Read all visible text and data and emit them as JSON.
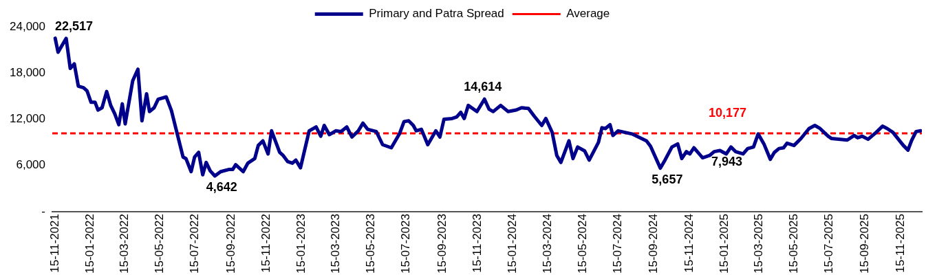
{
  "chart_data": {
    "type": "line",
    "legend": "top",
    "grid": false,
    "marker": "none",
    "x": [
      "2021-11-15",
      "2021-11-20",
      "2021-12-04",
      "2021-12-11",
      "2021-12-18",
      "2021-12-25",
      "2022-01-03",
      "2022-01-09",
      "2022-01-16",
      "2022-01-23",
      "2022-01-28",
      "2022-02-04",
      "2022-02-12",
      "2022-02-19",
      "2022-02-26",
      "2022-03-05",
      "2022-03-11",
      "2022-03-16",
      "2022-03-29",
      "2022-04-07",
      "2022-04-14",
      "2022-04-22",
      "2022-04-27",
      "2022-05-05",
      "2022-05-12",
      "2022-05-26",
      "2022-06-04",
      "2022-06-14",
      "2022-06-24",
      "2022-06-29",
      "2022-07-08",
      "2022-07-14",
      "2022-07-21",
      "2022-07-28",
      "2022-08-03",
      "2022-08-10",
      "2022-08-18",
      "2022-08-28",
      "2022-09-12",
      "2022-09-18",
      "2022-09-23",
      "2022-10-06",
      "2022-10-14",
      "2022-10-26",
      "2022-11-01",
      "2022-11-09",
      "2022-11-18",
      "2022-11-24",
      "2022-12-08",
      "2022-12-14",
      "2022-12-22",
      "2022-12-30",
      "2023-01-05",
      "2023-01-13",
      "2023-01-28",
      "2023-02-09",
      "2023-02-17",
      "2023-02-23",
      "2023-03-04",
      "2023-03-15",
      "2023-03-24",
      "2023-04-03",
      "2023-04-12",
      "2023-04-23",
      "2023-05-01",
      "2023-05-09",
      "2023-05-24",
      "2023-06-04",
      "2023-06-19",
      "2023-07-03",
      "2023-07-11",
      "2023-07-19",
      "2023-07-27",
      "2023-08-01",
      "2023-08-10",
      "2023-08-21",
      "2023-09-04",
      "2023-09-11",
      "2023-09-18",
      "2023-10-02",
      "2023-10-10",
      "2023-10-17",
      "2023-10-23",
      "2023-10-30",
      "2023-11-14",
      "2023-11-27",
      "2023-12-05",
      "2023-12-12",
      "2023-12-25",
      "2024-01-07",
      "2024-01-21",
      "2024-01-30",
      "2024-02-11",
      "2024-02-21",
      "2024-03-05",
      "2024-03-12",
      "2024-03-23",
      "2024-03-31",
      "2024-04-07",
      "2024-04-21",
      "2024-04-28",
      "2024-05-06",
      "2024-05-18",
      "2024-05-26",
      "2024-06-11",
      "2024-06-17",
      "2024-06-23",
      "2024-07-01",
      "2024-07-06",
      "2024-07-15",
      "2024-07-27",
      "2024-08-08",
      "2024-09-02",
      "2024-09-09",
      "2024-09-26",
      "2024-10-04",
      "2024-10-16",
      "2024-10-26",
      "2024-11-02",
      "2024-11-10",
      "2024-11-16",
      "2024-11-23",
      "2024-12-08",
      "2024-12-20",
      "2024-12-28",
      "2025-01-07",
      "2025-01-18",
      "2025-01-26",
      "2025-02-03",
      "2025-02-16",
      "2025-02-24",
      "2025-03-06",
      "2025-03-14",
      "2025-03-24",
      "2025-04-04",
      "2025-04-11",
      "2025-04-19",
      "2025-04-27",
      "2025-05-03",
      "2025-05-15",
      "2025-05-27",
      "2025-06-10",
      "2025-06-20",
      "2025-06-29",
      "2025-07-13",
      "2025-07-19",
      "2025-08-15",
      "2025-08-27",
      "2025-09-02",
      "2025-09-10",
      "2025-09-20",
      "2025-10-04",
      "2025-10-15",
      "2025-10-23",
      "2025-11-02",
      "2025-11-20",
      "2025-11-28",
      "2025-12-04",
      "2025-12-12",
      "2025-12-20"
    ],
    "series": [
      {
        "name": "Primary and Patra Spread",
        "color": "#00008b",
        "line_style": "solid",
        "values": [
          22517,
          20700,
          22500,
          18600,
          19200,
          16300,
          16100,
          15700,
          14200,
          14200,
          13200,
          13500,
          15600,
          13800,
          12700,
          11300,
          14000,
          11400,
          17000,
          18500,
          11800,
          15300,
          13000,
          13500,
          14600,
          14900,
          13100,
          10100,
          7100,
          6900,
          5200,
          7100,
          7700,
          4800,
          6400,
          5300,
          4642,
          5200,
          5500,
          5500,
          6100,
          5200,
          6300,
          6900,
          8600,
          9200,
          7500,
          10500,
          7700,
          7300,
          6500,
          6300,
          6700,
          5700,
          10500,
          11000,
          9800,
          11200,
          10000,
          10500,
          10400,
          11000,
          9700,
          10500,
          11500,
          10700,
          10400,
          8700,
          8300,
          10100,
          11700,
          11800,
          11200,
          10500,
          10700,
          8700,
          10500,
          9700,
          12000,
          12100,
          12300,
          12900,
          12100,
          13800,
          13000,
          14614,
          13300,
          13000,
          13800,
          13000,
          13200,
          13500,
          13400,
          12400,
          11200,
          12100,
          10300,
          7300,
          6400,
          9200,
          6900,
          8400,
          7900,
          6700,
          9000,
          10900,
          10800,
          11300,
          9900,
          10500,
          10300,
          10100,
          9200,
          8500,
          5657,
          6700,
          8400,
          8800,
          6900,
          7800,
          7500,
          8300,
          7000,
          7300,
          7800,
          7943,
          7500,
          8400,
          7800,
          7500,
          8200,
          8400,
          10100,
          8800,
          6800,
          7700,
          8200,
          8300,
          8900,
          8600,
          9500,
          10800,
          11200,
          10800,
          9800,
          9500,
          9300,
          9900,
          9600,
          9800,
          9400,
          10300,
          11100,
          10800,
          10300,
          8600,
          8000,
          9200,
          10400,
          10500
        ]
      }
    ],
    "ref_lines": [
      {
        "axis": "y",
        "value": 10177,
        "label": "Average",
        "color": "#ff0000",
        "line_style": "dashed"
      }
    ],
    "annotations": [
      {
        "text": "22,517",
        "x": "2021-11-15",
        "y": 22517
      },
      {
        "text": "4,642",
        "x": "2022-08-18",
        "y": 4642
      },
      {
        "text": "14,614",
        "x": "2023-11-27",
        "y": 14614
      },
      {
        "text": "5,657",
        "x": "2024-09-26",
        "y": 5657
      },
      {
        "text": "7,943",
        "x": "2025-01-07",
        "y": 7943
      },
      {
        "text": "10,177",
        "x": "2025-01-20",
        "y": 10177
      }
    ],
    "xlim": [
      "2021-11-10",
      "2025-12-22"
    ],
    "xticks": [
      {
        "value": "2021-11-15",
        "label": "15-11-2021"
      },
      {
        "value": "2022-01-15",
        "label": "15-01-2022"
      },
      {
        "value": "2022-03-15",
        "label": "15-03-2022"
      },
      {
        "value": "2022-05-15",
        "label": "15-05-2022"
      },
      {
        "value": "2022-07-15",
        "label": "15-07-2022"
      },
      {
        "value": "2022-09-15",
        "label": "15-09-2022"
      },
      {
        "value": "2022-11-15",
        "label": "15-11-2022"
      },
      {
        "value": "2023-01-15",
        "label": "15-01-2023"
      },
      {
        "value": "2023-03-15",
        "label": "15-03-2023"
      },
      {
        "value": "2023-05-15",
        "label": "15-05-2023"
      },
      {
        "value": "2023-07-15",
        "label": "15-07-2023"
      },
      {
        "value": "2023-09-15",
        "label": "15-09-2023"
      },
      {
        "value": "2023-11-15",
        "label": "15-11-2023"
      },
      {
        "value": "2024-01-15",
        "label": "15-01-2024"
      },
      {
        "value": "2024-03-15",
        "label": "15-03-2024"
      },
      {
        "value": "2024-05-15",
        "label": "15-05-2024"
      },
      {
        "value": "2024-07-15",
        "label": "15-07-2024"
      },
      {
        "value": "2024-09-15",
        "label": "15-09-2024"
      },
      {
        "value": "2024-11-15",
        "label": "15-11-2024"
      },
      {
        "value": "2025-01-15",
        "label": "15-01-2025"
      },
      {
        "value": "2025-03-15",
        "label": "15-03-2025"
      },
      {
        "value": "2025-05-15",
        "label": "15-05-2025"
      },
      {
        "value": "2025-07-15",
        "label": "15-07-2025"
      },
      {
        "value": "2025-09-15",
        "label": "15-09-2025"
      },
      {
        "value": "2025-11-15",
        "label": "15-11-2025"
      }
    ],
    "ylim": [
      0,
      24000
    ],
    "yticks": [
      {
        "value": 0,
        "label": "-"
      },
      {
        "value": 6000,
        "label": "6,000"
      },
      {
        "value": 12000,
        "label": "12,000"
      },
      {
        "value": 18000,
        "label": "18,000"
      },
      {
        "value": 24000,
        "label": "24,000"
      }
    ]
  }
}
